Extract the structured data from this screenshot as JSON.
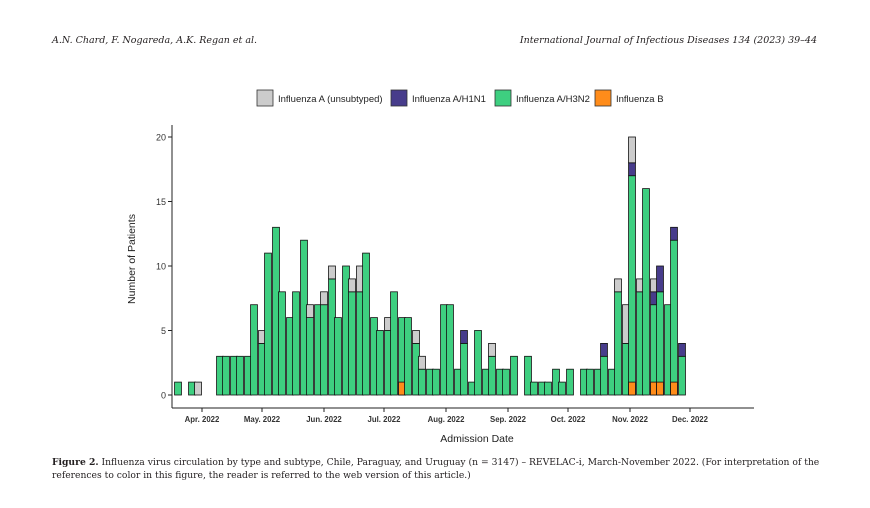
{
  "running_head": {
    "authors": "A.N. Chard, F. Nogareda, A.K. Regan et al.",
    "journal": "International Journal of Infectious Diseases 134 (2023) 39–44"
  },
  "caption": {
    "label": "Figure 2.",
    "text": "Influenza virus circulation by type and subtype, Chile, Paraguay, and Uruguay (n = 3147) – REVELAC-i, March-November 2022. (For interpretation of the references to color in this figure, the reader is referred to the web version of this article.)"
  },
  "chart_data": {
    "type": "bar",
    "stacked": true,
    "xlabel": "Admission Date",
    "ylabel": "Number of Patients",
    "ylim": [
      0,
      21
    ],
    "yticks": [
      0,
      5,
      10,
      15,
      20
    ],
    "xlim_days": [
      -15,
      276
    ],
    "xticks": [
      {
        "label": "Apr. 2022",
        "day": 0
      },
      {
        "label": "May. 2022",
        "day": 30
      },
      {
        "label": "Jun. 2022",
        "day": 61
      },
      {
        "label": "Jul. 2022",
        "day": 91
      },
      {
        "label": "Aug. 2022",
        "day": 122
      },
      {
        "label": "Sep. 2022",
        "day": 153
      },
      {
        "label": "Oct. 2022",
        "day": 183
      },
      {
        "label": "Nov. 2022",
        "day": 214
      },
      {
        "label": "Dec. 2022",
        "day": 244
      }
    ],
    "legend_position": "top",
    "grid": false,
    "series": [
      {
        "name": "Influenza A (unsubtyped)",
        "color": "#cccccc"
      },
      {
        "name": "Influenza A/H1N1",
        "color": "#473c8b"
      },
      {
        "name": "Influenza A/H3N2",
        "color": "#3ecf80"
      },
      {
        "name": "Influenza B",
        "color": "#ff8c1a"
      }
    ],
    "bars": [
      {
        "day": -12,
        "values": [
          0,
          0,
          1,
          0
        ]
      },
      {
        "day": -5,
        "values": [
          0,
          0,
          1,
          0
        ]
      },
      {
        "day": -2,
        "values": [
          1,
          0,
          0,
          0
        ]
      },
      {
        "day": 9,
        "values": [
          0,
          0,
          3,
          0
        ]
      },
      {
        "day": 12,
        "values": [
          0,
          0,
          3,
          0
        ]
      },
      {
        "day": 16,
        "values": [
          0,
          0,
          3,
          0
        ]
      },
      {
        "day": 19,
        "values": [
          0,
          0,
          3,
          0
        ]
      },
      {
        "day": 23,
        "values": [
          0,
          0,
          3,
          0
        ]
      },
      {
        "day": 26,
        "values": [
          0,
          0,
          7,
          0
        ]
      },
      {
        "day": 30,
        "values": [
          1,
          0,
          4,
          0
        ]
      },
      {
        "day": 33,
        "values": [
          0,
          0,
          11,
          0
        ]
      },
      {
        "day": 37,
        "values": [
          0,
          0,
          13,
          0
        ]
      },
      {
        "day": 40,
        "values": [
          0,
          0,
          8,
          0
        ]
      },
      {
        "day": 44,
        "values": [
          0,
          0,
          6,
          0
        ]
      },
      {
        "day": 47,
        "values": [
          0,
          0,
          8,
          0
        ]
      },
      {
        "day": 51,
        "values": [
          0,
          0,
          12,
          0
        ]
      },
      {
        "day": 54,
        "values": [
          1,
          0,
          6,
          0
        ]
      },
      {
        "day": 58,
        "values": [
          0,
          0,
          7,
          0
        ]
      },
      {
        "day": 61,
        "values": [
          1,
          0,
          7,
          0
        ]
      },
      {
        "day": 65,
        "values": [
          1,
          0,
          9,
          0
        ]
      },
      {
        "day": 68,
        "values": [
          0,
          0,
          6,
          0
        ]
      },
      {
        "day": 72,
        "values": [
          0,
          0,
          10,
          0
        ]
      },
      {
        "day": 75,
        "values": [
          1,
          0,
          8,
          0
        ]
      },
      {
        "day": 79,
        "values": [
          2,
          0,
          8,
          0
        ]
      },
      {
        "day": 82,
        "values": [
          0,
          0,
          11,
          0
        ]
      },
      {
        "day": 86,
        "values": [
          0,
          0,
          6,
          0
        ]
      },
      {
        "day": 89,
        "values": [
          0,
          0,
          5,
          0
        ]
      },
      {
        "day": 93,
        "values": [
          1,
          0,
          5,
          0
        ]
      },
      {
        "day": 96,
        "values": [
          0,
          0,
          8,
          0
        ]
      },
      {
        "day": 100,
        "values": [
          0,
          0,
          5,
          1
        ]
      },
      {
        "day": 103,
        "values": [
          0,
          0,
          6,
          0
        ]
      },
      {
        "day": 107,
        "values": [
          1,
          0,
          4,
          0
        ]
      },
      {
        "day": 110,
        "values": [
          1,
          0,
          2,
          0
        ]
      },
      {
        "day": 114,
        "values": [
          0,
          0,
          2,
          0
        ]
      },
      {
        "day": 117,
        "values": [
          0,
          0,
          2,
          0
        ]
      },
      {
        "day": 121,
        "values": [
          0,
          0,
          7,
          0
        ]
      },
      {
        "day": 124,
        "values": [
          0,
          0,
          7,
          0
        ]
      },
      {
        "day": 128,
        "values": [
          0,
          0,
          2,
          0
        ]
      },
      {
        "day": 131,
        "values": [
          0,
          1,
          4,
          0
        ]
      },
      {
        "day": 135,
        "values": [
          0,
          0,
          1,
          0
        ]
      },
      {
        "day": 138,
        "values": [
          0,
          0,
          5,
          0
        ]
      },
      {
        "day": 142,
        "values": [
          0,
          0,
          2,
          0
        ]
      },
      {
        "day": 145,
        "values": [
          1,
          0,
          3,
          0
        ]
      },
      {
        "day": 149,
        "values": [
          0,
          0,
          2,
          0
        ]
      },
      {
        "day": 152,
        "values": [
          0,
          0,
          2,
          0
        ]
      },
      {
        "day": 156,
        "values": [
          0,
          0,
          3,
          0
        ]
      },
      {
        "day": 163,
        "values": [
          0,
          0,
          3,
          0
        ]
      },
      {
        "day": 166,
        "values": [
          0,
          0,
          1,
          0
        ]
      },
      {
        "day": 170,
        "values": [
          0,
          0,
          1,
          0
        ]
      },
      {
        "day": 173,
        "values": [
          0,
          0,
          1,
          0
        ]
      },
      {
        "day": 177,
        "values": [
          0,
          0,
          2,
          0
        ]
      },
      {
        "day": 180,
        "values": [
          0,
          0,
          1,
          0
        ]
      },
      {
        "day": 184,
        "values": [
          0,
          0,
          2,
          0
        ]
      },
      {
        "day": 191,
        "values": [
          0,
          0,
          2,
          0
        ]
      },
      {
        "day": 194,
        "values": [
          0,
          0,
          2,
          0
        ]
      },
      {
        "day": 198,
        "values": [
          0,
          0,
          2,
          0
        ]
      },
      {
        "day": 201,
        "values": [
          0,
          1,
          3,
          0
        ]
      },
      {
        "day": 205,
        "values": [
          0,
          0,
          2,
          0
        ]
      },
      {
        "day": 208,
        "values": [
          1,
          0,
          8,
          0
        ]
      },
      {
        "day": 212,
        "values": [
          3,
          0,
          4,
          0
        ]
      },
      {
        "day": 215,
        "values": [
          2,
          1,
          16,
          1
        ]
      },
      {
        "day": 219,
        "values": [
          1,
          0,
          8,
          0
        ]
      },
      {
        "day": 222,
        "values": [
          0,
          0,
          16,
          0
        ]
      },
      {
        "day": 226,
        "values": [
          1,
          1,
          6,
          1
        ]
      },
      {
        "day": 229,
        "values": [
          0,
          2,
          7,
          1
        ]
      },
      {
        "day": 233,
        "values": [
          0,
          0,
          7,
          0
        ]
      },
      {
        "day": 236,
        "values": [
          0,
          1,
          11,
          1
        ]
      },
      {
        "day": 240,
        "values": [
          0,
          1,
          3,
          0
        ]
      }
    ]
  }
}
